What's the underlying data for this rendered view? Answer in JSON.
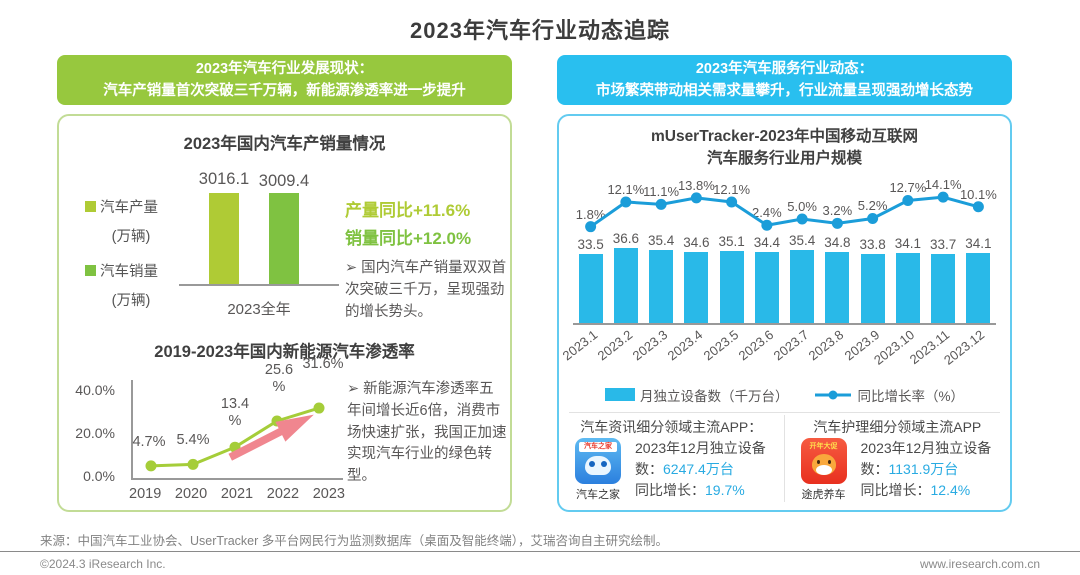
{
  "page_title": "2023年汽车行业动态追踪",
  "colors": {
    "green_header": "#97C83E",
    "cyan_header": "#29BFEF",
    "production_bar": "#AFCB35",
    "sales_bar": "#7FC241",
    "nev_line": "#A5CD39",
    "arrow_pink": "#F0868F",
    "device_bar": "#29B9E8",
    "growth_line": "#1B9DD9",
    "highlight_cyan": "#29ABE2"
  },
  "left_panel": {
    "header_line1": "2023年汽车行业发展现状：",
    "header_line2": "汽车产销量首次突破三千万辆，新能源渗透率进一步提升",
    "chart1": {
      "title": "2023年国内汽车产销量情况",
      "legend": [
        {
          "name": "汽车产量",
          "unit": "(万辆)"
        },
        {
          "name": "汽车销量",
          "unit": "(万辆)"
        }
      ],
      "x_label": "2023全年",
      "yoy_production": "产量同比+11.6%",
      "yoy_sales": "销量同比+12.0%",
      "bullet": "➢ 国内汽车产销量双双首次突破三千万，呈现强劲的增长势头。"
    },
    "chart2": {
      "title": "2019-2023年国内新能源汽车渗透率",
      "bullet": "➢ 新能源汽车渗透率五年间增长近6倍，消费市场快速扩张，我国正加速实现汽车行业的绿色转型。"
    }
  },
  "right_panel": {
    "header_line1": "2023年汽车服务行业动态：",
    "header_line2": "市场繁荣带动相关需求量攀升，行业流量呈现强劲增长态势",
    "chart_title_line1": "mUserTracker-2023年中国移动互联网",
    "chart_title_line2": "汽车服务行业用户规模",
    "apps": [
      {
        "heading": "汽车资讯细分领域主流APP：",
        "icon_name": "汽车之家",
        "icon_top_text": "汽车之家",
        "caption": "汽车之家",
        "line1_prefix": "2023年12月独立设备数：",
        "line1_value": "6247.4万台",
        "line2_prefix": "同比增长：",
        "line2_value": "19.7%"
      },
      {
        "heading": "汽车护理细分领域主流APP",
        "icon_name": "途虎养车",
        "icon_top_text": "开年大促",
        "caption": "途虎养车",
        "line1_prefix": "2023年12月独立设备数：",
        "line1_value": "1131.9万台",
        "line2_prefix": "同比增长：",
        "line2_value": "12.4%"
      }
    ]
  },
  "footer": {
    "source": "来源：中国汽车工业协会、UserTracker 多平台网民行为监测数据库（桌面及智能终端），艾瑞咨询自主研究绘制。",
    "copyright": "©2024.3 iResearch Inc.",
    "website": "www.iresearch.com.cn"
  },
  "chart_data": [
    {
      "id": "production-sales-2023",
      "type": "bar",
      "title": "2023年国内汽车产销量情况",
      "categories": [
        "2023全年"
      ],
      "series": [
        {
          "name": "汽车产量（万辆）",
          "values": [
            3016.1
          ],
          "color": "#AFCB35"
        },
        {
          "name": "汽车销量（万辆）",
          "values": [
            3009.4
          ],
          "color": "#7FC241"
        }
      ],
      "ylabel": "万辆",
      "ylim": [
        0,
        3300
      ],
      "annotations": [
        "产量同比+11.6%",
        "销量同比+12.0%"
      ]
    },
    {
      "id": "nev-penetration",
      "type": "line",
      "title": "2019-2023年国内新能源汽车渗透率",
      "categories": [
        "2019",
        "2020",
        "2021",
        "2022",
        "2023"
      ],
      "values": [
        4.7,
        5.4,
        13.4,
        25.6,
        31.6
      ],
      "labels": [
        "4.7%",
        "5.4%",
        "13.4%",
        "25.6%",
        "31.6%"
      ],
      "yticks": [
        "40.0%",
        "20.0%",
        "0.0%"
      ],
      "ylim": [
        0,
        40
      ],
      "color": "#A5CD39"
    },
    {
      "id": "auto-service-user-scale",
      "type": "bar+line",
      "title": "mUserTracker-2023年中国移动互联网汽车服务行业用户规模",
      "categories": [
        "2023.1",
        "2023.2",
        "2023.3",
        "2023.4",
        "2023.5",
        "2023.6",
        "2023.7",
        "2023.8",
        "2023.9",
        "2023.10",
        "2023.11",
        "2023.12"
      ],
      "series": [
        {
          "name": "月独立设备数（千万台）",
          "type": "bar",
          "values": [
            33.5,
            36.6,
            35.4,
            34.6,
            35.1,
            34.4,
            35.4,
            34.8,
            33.8,
            34.1,
            33.7,
            34.1
          ],
          "color": "#29B9E8",
          "ylim": [
            0,
            40
          ]
        },
        {
          "name": "同比增长率（%）",
          "type": "line",
          "values": [
            1.8,
            12.1,
            11.1,
            13.8,
            12.1,
            2.4,
            5.0,
            3.2,
            5.2,
            12.7,
            14.1,
            10.1
          ],
          "labels": [
            "1.8%",
            "12.1%",
            "11.1%",
            "13.8%",
            "12.1%",
            "2.4%",
            "5.0%",
            "3.2%",
            "5.2%",
            "12.7%",
            "14.1%",
            "10.1%"
          ],
          "color": "#1B9DD9",
          "ylim": [
            0,
            15
          ]
        }
      ],
      "legend_position": "bottom"
    }
  ]
}
